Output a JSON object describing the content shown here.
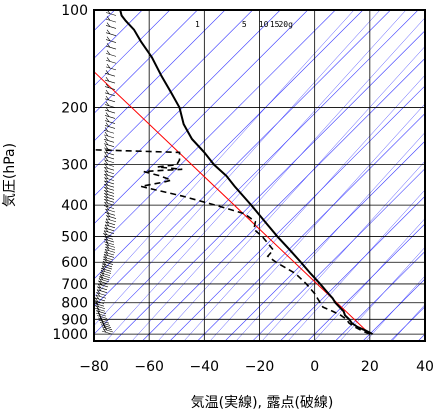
{
  "chart_data": {
    "type": "line",
    "title": "",
    "xlabel": "気温(実線), 露点(破線)",
    "ylabel": "気圧(hPa)",
    "xlim": [
      -80,
      40
    ],
    "ylim": [
      1050,
      100
    ],
    "y_scale": "log",
    "x_ticks": [
      "−80",
      "−60",
      "−40",
      "−20",
      "0",
      "20",
      "40"
    ],
    "x_tick_values": [
      -80,
      -60,
      -40,
      -20,
      0,
      20,
      40
    ],
    "y_ticks": [
      "100",
      "200",
      "300",
      "400",
      "500",
      "600",
      "700",
      "800",
      "900",
      "1000"
    ],
    "y_tick_values": [
      100,
      200,
      300,
      400,
      500,
      600,
      700,
      800,
      900,
      1000
    ],
    "mixing_ratio_labels": [
      {
        "text": "1",
        "x": -42.5
      },
      {
        "text": "5",
        "x": -25.5
      },
      {
        "text": "10",
        "x": -18.5
      },
      {
        "text": "15",
        "x": -14.5
      },
      {
        "text": "20g",
        "x": -10.5
      }
    ],
    "colors": {
      "grid": "#000000",
      "isotherm": "#3a3aff",
      "dry_adiabat_ref": "#ff0000",
      "temperature": "#000000",
      "dewpoint": "#000000"
    },
    "series": [
      {
        "style": "solid",
        "points": [
          {
            "p": 1000,
            "t": 21
          },
          {
            "p": 975,
            "t": 18.5
          },
          {
            "p": 950,
            "t": 15.5
          },
          {
            "p": 925,
            "t": 13.5
          },
          {
            "p": 900,
            "t": 12.5
          },
          {
            "p": 875,
            "t": 11
          },
          {
            "p": 850,
            "t": 10.5
          },
          {
            "p": 825,
            "t": 9
          },
          {
            "p": 800,
            "t": 7.5
          },
          {
            "p": 775,
            "t": 6.5
          },
          {
            "p": 750,
            "t": 5
          },
          {
            "p": 700,
            "t": 2
          },
          {
            "p": 650,
            "t": -1.5
          },
          {
            "p": 600,
            "t": -5
          },
          {
            "p": 550,
            "t": -9
          },
          {
            "p": 500,
            "t": -13.5
          },
          {
            "p": 450,
            "t": -18
          },
          {
            "p": 400,
            "t": -23
          },
          {
            "p": 350,
            "t": -29
          },
          {
            "p": 325,
            "t": -32
          },
          {
            "p": 300,
            "t": -36.5
          },
          {
            "p": 275,
            "t": -40
          },
          {
            "p": 250,
            "t": -44.5
          },
          {
            "p": 225,
            "t": -47.5
          },
          {
            "p": 200,
            "t": -49
          },
          {
            "p": 180,
            "t": -52
          },
          {
            "p": 160,
            "t": -55.5
          },
          {
            "p": 140,
            "t": -59
          },
          {
            "p": 125,
            "t": -63
          },
          {
            "p": 115,
            "t": -65.5
          },
          {
            "p": 108,
            "t": -68.5
          },
          {
            "p": 104,
            "t": -70
          },
          {
            "p": 100,
            "t": -70.5
          }
        ]
      },
      {
        "style": "dashed",
        "points": [
          {
            "p": 1000,
            "t": 20
          },
          {
            "p": 975,
            "t": 17
          },
          {
            "p": 950,
            "t": 14.5
          },
          {
            "p": 925,
            "t": 12.5
          },
          {
            "p": 900,
            "t": 11.5
          },
          {
            "p": 875,
            "t": 9.5
          },
          {
            "p": 850,
            "t": 6.5
          },
          {
            "p": 825,
            "t": 3
          },
          {
            "p": 800,
            "t": 2
          },
          {
            "p": 775,
            "t": 1
          },
          {
            "p": 750,
            "t": 0
          },
          {
            "p": 700,
            "t": -3
          },
          {
            "p": 650,
            "t": -7
          },
          {
            "p": 600,
            "t": -14
          },
          {
            "p": 575,
            "t": -17
          },
          {
            "p": 550,
            "t": -15
          },
          {
            "p": 500,
            "t": -19
          },
          {
            "p": 475,
            "t": -22
          },
          {
            "p": 450,
            "t": -21.5
          },
          {
            "p": 425,
            "t": -25.5
          },
          {
            "p": 400,
            "t": -36
          },
          {
            "p": 375,
            "t": -48
          },
          {
            "p": 360,
            "t": -57
          },
          {
            "p": 350,
            "t": -63
          },
          {
            "p": 340,
            "t": -55
          },
          {
            "p": 335,
            "t": -52
          },
          {
            "p": 325,
            "t": -56
          },
          {
            "p": 315,
            "t": -62
          },
          {
            "p": 310,
            "t": -48
          },
          {
            "p": 305,
            "t": -57
          },
          {
            "p": 300,
            "t": -50
          },
          {
            "p": 290,
            "t": -49
          },
          {
            "p": 275,
            "t": -49
          },
          {
            "p": 270,
            "t": -80
          }
        ]
      }
    ],
    "wind_barbs": {
      "pressures": [
        1000,
        985,
        970,
        955,
        940,
        925,
        910,
        895,
        880,
        865,
        850,
        835,
        820,
        805,
        790,
        775,
        760,
        745,
        730,
        715,
        700,
        690,
        680,
        670,
        660,
        650,
        640,
        630,
        620,
        610,
        600,
        590,
        580,
        570,
        560,
        550,
        540,
        530,
        520,
        510,
        500,
        490,
        480,
        470,
        460,
        450,
        440,
        430,
        420,
        410,
        400,
        392,
        384,
        376,
        368,
        360,
        352,
        344,
        336,
        328,
        320,
        312,
        304,
        296,
        288,
        280,
        272,
        264,
        256,
        248,
        240,
        232,
        224,
        216,
        208,
        200,
        192,
        184,
        176,
        168,
        160,
        153,
        146,
        139,
        132,
        126,
        120,
        114,
        109,
        104,
        100
      ],
      "x_offsets": [
        18,
        19,
        18,
        17,
        16,
        15,
        14,
        13,
        12,
        12,
        11,
        11,
        10,
        10,
        11,
        12,
        12,
        13,
        13,
        14,
        14,
        15,
        15,
        16,
        16,
        17,
        17,
        18,
        18,
        19,
        19,
        19,
        20,
        20,
        21,
        21,
        21,
        20,
        20,
        19,
        19,
        20,
        20,
        21,
        21,
        22,
        22,
        21,
        21,
        20,
        20,
        20,
        20,
        20,
        20,
        20,
        20,
        20,
        20,
        20,
        20,
        20,
        20,
        20,
        20,
        20,
        20,
        20,
        20,
        20,
        20,
        21,
        21,
        21,
        21,
        21,
        21,
        21,
        21,
        21,
        21,
        22,
        22,
        22,
        22,
        22,
        22,
        22,
        22,
        22,
        22
      ]
    }
  }
}
